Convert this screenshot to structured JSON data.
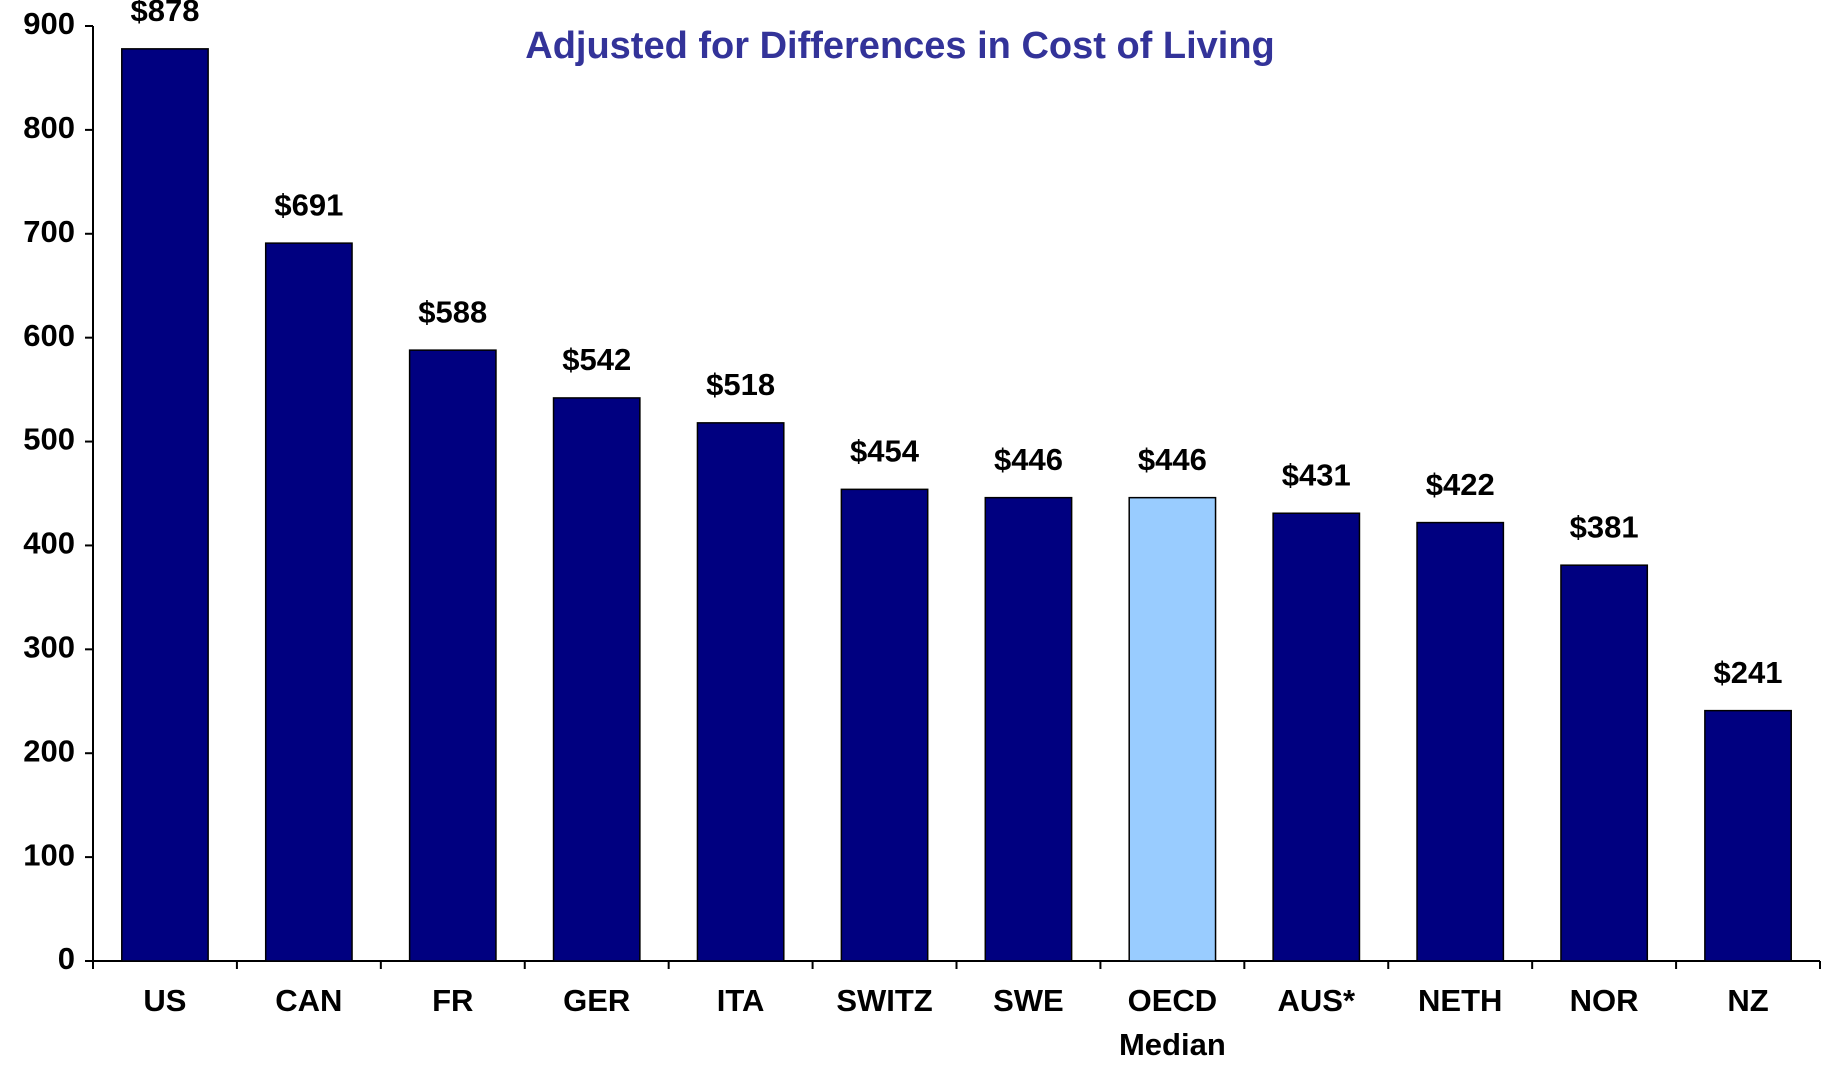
{
  "chart_data": {
    "type": "bar",
    "subtitle": "Adjusted for Differences in Cost of Living",
    "categories": [
      "US",
      "CAN",
      "FR",
      "GER",
      "ITA",
      "SWITZ",
      "SWE",
      "OECD Median",
      "AUS*",
      "NETH",
      "NOR",
      "NZ"
    ],
    "values": [
      878,
      691,
      588,
      542,
      518,
      454,
      446,
      446,
      431,
      422,
      381,
      241
    ],
    "value_labels": [
      "$878",
      "$691",
      "$588",
      "$542",
      "$518",
      "$454",
      "$446",
      "$446",
      "$431",
      "$422",
      "$381",
      "$241"
    ],
    "colors": [
      "#000080",
      "#000080",
      "#000080",
      "#000080",
      "#000080",
      "#000080",
      "#000080",
      "#99ccff",
      "#000080",
      "#000080",
      "#000080",
      "#000080"
    ],
    "ylim": [
      0,
      900
    ],
    "yticks": [
      0,
      100,
      200,
      300,
      400,
      500,
      600,
      700,
      800,
      900
    ],
    "grid": false
  }
}
